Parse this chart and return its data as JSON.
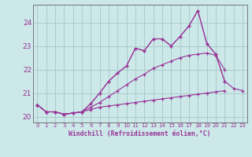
{
  "xlabel": "Windchill (Refroidissement éolien,°C)",
  "bg_color": "#cce8e8",
  "grid_color": "#aacccc",
  "line_color": "#993399",
  "xvalues": [
    0,
    1,
    2,
    3,
    4,
    5,
    6,
    7,
    8,
    9,
    10,
    11,
    12,
    13,
    14,
    15,
    16,
    17,
    18,
    19,
    20,
    21,
    22,
    23
  ],
  "series": [
    [
      20.5,
      20.2,
      20.2,
      20.1,
      20.15,
      20.2,
      20.3,
      20.4,
      20.45,
      20.5,
      20.55,
      20.6,
      20.65,
      20.7,
      20.75,
      20.8,
      20.85,
      20.9,
      20.95,
      21.0,
      21.05,
      21.1,
      null,
      null
    ],
    [
      20.5,
      20.2,
      20.2,
      20.1,
      20.15,
      20.2,
      20.4,
      20.6,
      20.85,
      21.1,
      21.35,
      21.6,
      21.8,
      22.05,
      22.2,
      22.35,
      22.5,
      22.6,
      22.65,
      22.7,
      22.6,
      22.0,
      null,
      null
    ],
    [
      20.5,
      20.2,
      20.2,
      20.1,
      20.15,
      20.2,
      20.55,
      21.0,
      21.5,
      21.85,
      22.15,
      22.9,
      22.8,
      23.3,
      23.3,
      23.0,
      23.4,
      23.85,
      24.5,
      23.1,
      22.65,
      21.5,
      null,
      null
    ],
    [
      20.5,
      20.2,
      20.2,
      20.1,
      20.15,
      20.2,
      20.55,
      21.0,
      21.5,
      21.85,
      22.15,
      22.9,
      22.8,
      23.3,
      23.3,
      23.0,
      23.4,
      23.85,
      24.5,
      23.1,
      22.65,
      21.5,
      21.2,
      21.1
    ]
  ],
  "ylim": [
    19.75,
    24.75
  ],
  "yticks": [
    20,
    21,
    22,
    23,
    24
  ],
  "xticks": [
    0,
    1,
    2,
    3,
    4,
    5,
    6,
    7,
    8,
    9,
    10,
    11,
    12,
    13,
    14,
    15,
    16,
    17,
    18,
    19,
    20,
    21,
    22,
    23
  ],
  "figsize": [
    3.2,
    2.0
  ],
  "dpi": 100
}
